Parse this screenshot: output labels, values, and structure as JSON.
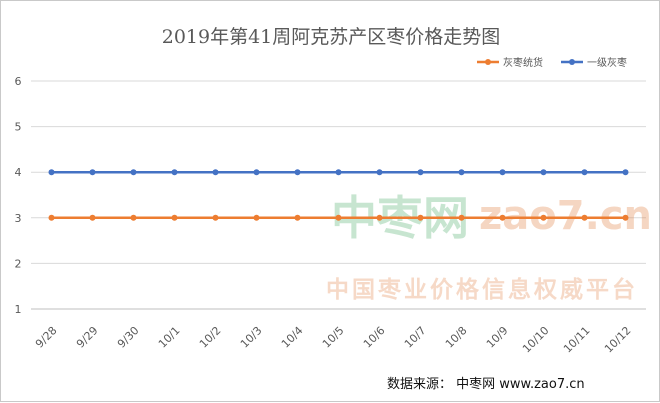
{
  "chart_data": {
    "type": "line",
    "title": "2019年第41周阿克苏产区枣价格走势图",
    "categories": [
      "9/28",
      "9/29",
      "9/30",
      "10/1",
      "10/2",
      "10/3",
      "10/4",
      "10/5",
      "10/6",
      "10/7",
      "10/8",
      "10/9",
      "10/10",
      "10/11",
      "10/12"
    ],
    "series": [
      {
        "name": "灰枣统货",
        "color": "#ED7D31",
        "values": [
          3,
          3,
          3,
          3,
          3,
          3,
          3,
          3,
          3,
          3,
          3,
          3,
          3,
          3,
          3
        ]
      },
      {
        "name": "一级灰枣",
        "color": "#4472C4",
        "values": [
          4,
          4,
          4,
          4,
          4,
          4,
          4,
          4,
          4,
          4,
          4,
          4,
          4,
          4,
          4
        ]
      }
    ],
    "ylim": [
      1,
      6
    ],
    "yticks": [
      1,
      2,
      3,
      4,
      5,
      6
    ],
    "grid": true,
    "legend_position": "top-right"
  },
  "watermark": {
    "brand": "中枣网",
    "url": "zao7.cn",
    "slogan": "中国枣业价格信息权威平台"
  },
  "source": {
    "text": "数据来源：  中枣网 www.zao7.cn"
  }
}
